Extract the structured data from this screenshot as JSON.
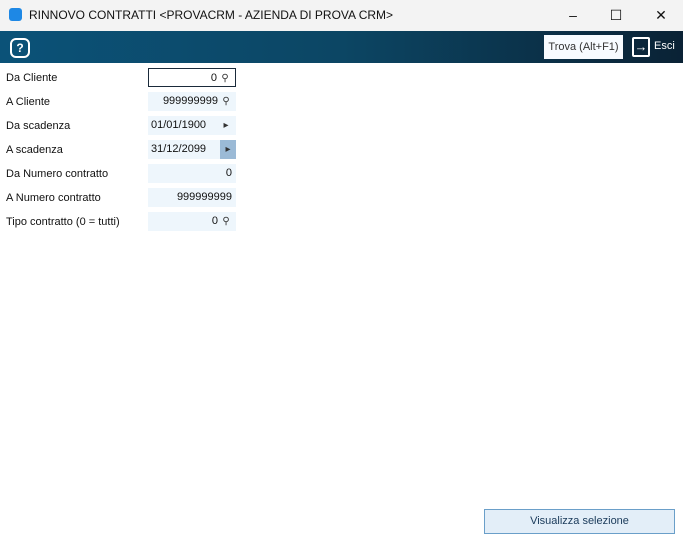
{
  "window": {
    "title": "RINNOVO CONTRATTI <PROVACRM - AZIENDA DI PROVA CRM>",
    "minimize": "–",
    "maximize": "☐",
    "close": "✕"
  },
  "toolbar": {
    "help": "?",
    "trova": "Trova (Alt+F1)",
    "esci": "Esci"
  },
  "fields": [
    {
      "label": "Da Cliente",
      "value": "0",
      "icon": "search-icon"
    },
    {
      "label": "A Cliente",
      "value": "999999999",
      "icon": "search-icon"
    },
    {
      "label": "Da scadenza",
      "value": "01/01/1900",
      "icon": "arrow-right-icon"
    },
    {
      "label": "A scadenza",
      "value": "31/12/2099",
      "icon": "arrow-right-icon"
    },
    {
      "label": "Da Numero contratto",
      "value": "0"
    },
    {
      "label": "A Numero contratto",
      "value": "999999999"
    },
    {
      "label": "Tipo contratto (0 = tutti)",
      "value": "0",
      "icon": "search-icon"
    }
  ],
  "button": "Visualizza selezione"
}
